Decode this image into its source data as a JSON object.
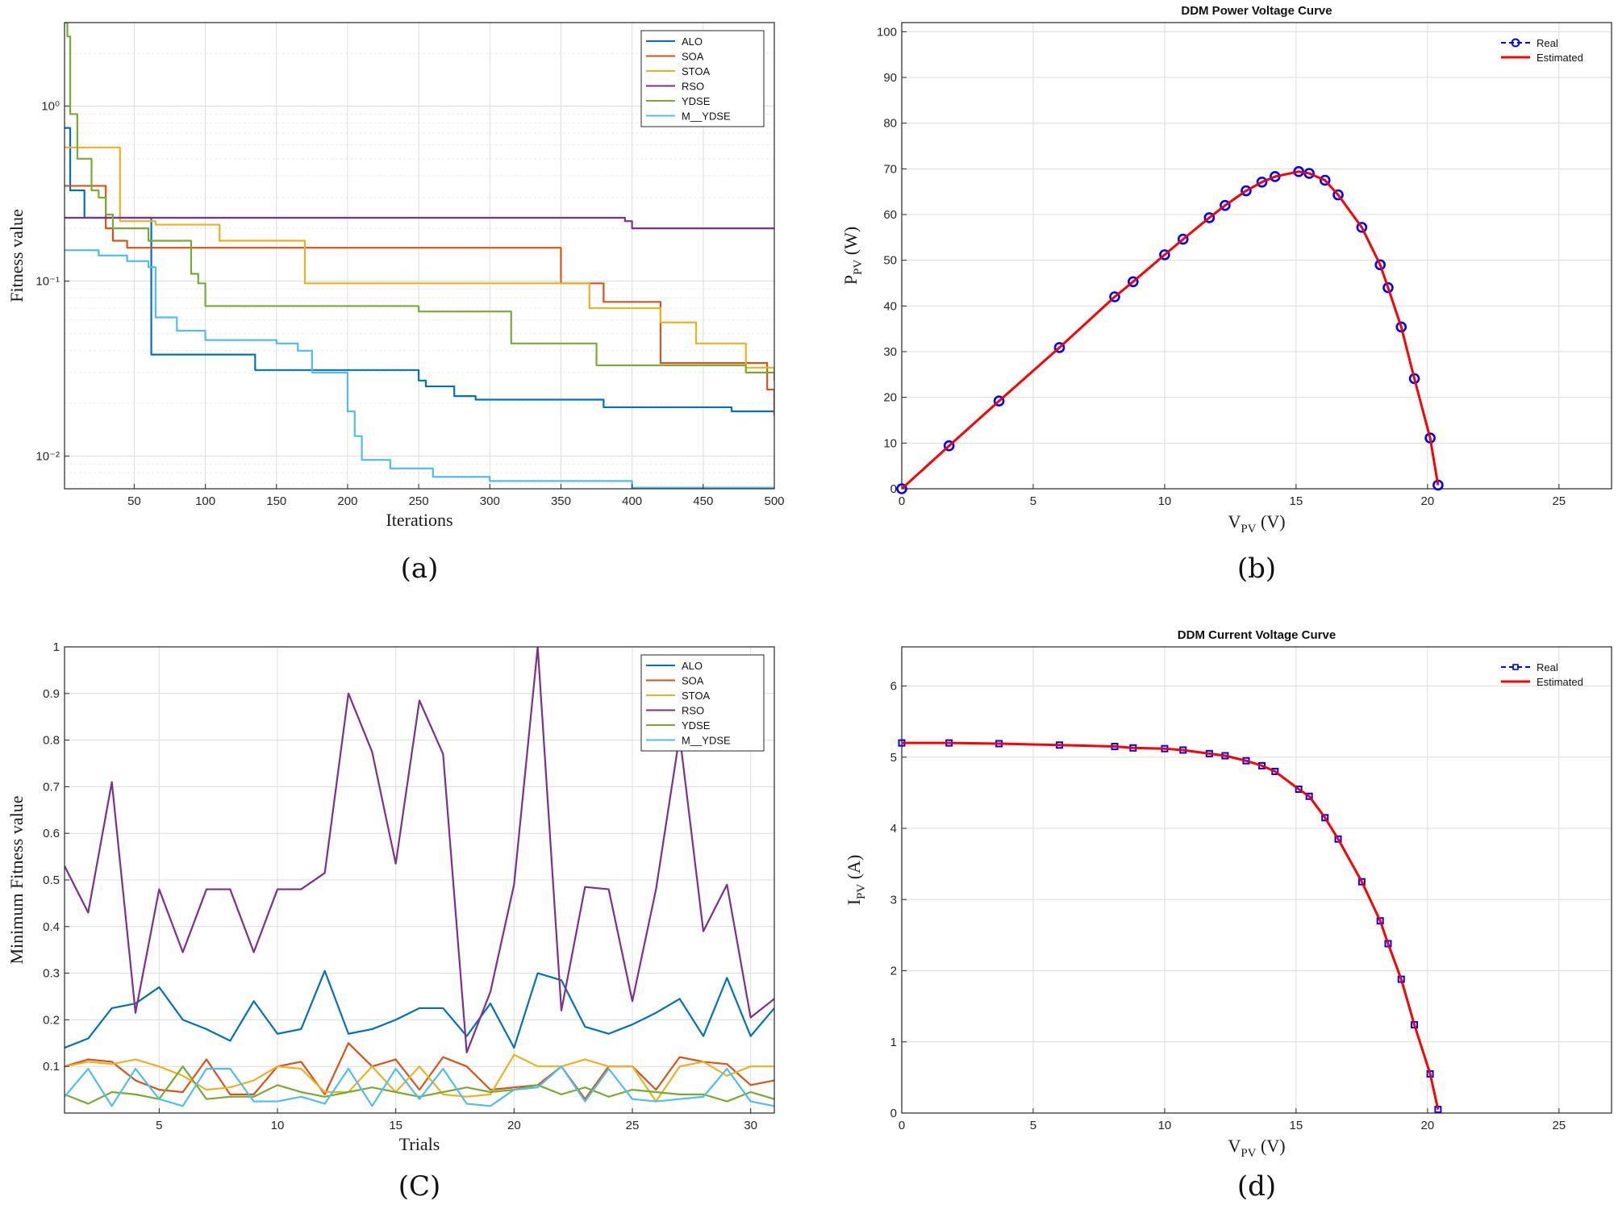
{
  "chart_data": [
    {
      "type": "line",
      "panel": "a",
      "caption": "(a)",
      "title": "",
      "xlabel": "Iterations",
      "ylabel": "Fitness value",
      "xlim": [
        1,
        500
      ],
      "ylim": [
        0.0065,
        3
      ],
      "yscale": "log",
      "xticks": [
        50,
        100,
        150,
        200,
        250,
        300,
        350,
        400,
        450,
        500
      ],
      "yticks": [
        0.01,
        0.1,
        1
      ],
      "ytick_labels": [
        "10⁻²",
        "10⁻¹",
        "10⁰"
      ],
      "grid": true,
      "legend_position": "top-right",
      "step": true,
      "series": [
        {
          "name": "ALO",
          "color": "#0072BD",
          "x": [
            1,
            5,
            8,
            15,
            20,
            62,
            135,
            250,
            255,
            275,
            290,
            310,
            380,
            470,
            500
          ],
          "values": [
            0.75,
            0.33,
            0.33,
            0.23,
            0.23,
            0.038,
            0.031,
            0.027,
            0.025,
            0.022,
            0.021,
            0.021,
            0.019,
            0.018,
            0.018
          ]
        },
        {
          "name": "SOA",
          "color": "#D95319",
          "x": [
            1,
            10,
            20,
            30,
            35,
            45,
            100,
            170,
            350,
            380,
            420,
            470,
            495,
            500
          ],
          "values": [
            0.35,
            0.35,
            0.35,
            0.2,
            0.17,
            0.155,
            0.155,
            0.155,
            0.097,
            0.076,
            0.034,
            0.034,
            0.024,
            0.017
          ]
        },
        {
          "name": "STOA",
          "color": "#EDB120",
          "x": [
            1,
            25,
            38,
            40,
            60,
            65,
            110,
            170,
            350,
            370,
            395,
            420,
            445,
            480,
            500
          ],
          "values": [
            0.58,
            0.58,
            0.58,
            0.22,
            0.22,
            0.21,
            0.17,
            0.097,
            0.097,
            0.07,
            0.07,
            0.058,
            0.044,
            0.032,
            0.03
          ]
        },
        {
          "name": "RSO",
          "color": "#7E2F8E",
          "x": [
            1,
            30,
            380,
            395,
            400,
            500
          ],
          "values": [
            0.23,
            0.23,
            0.23,
            0.22,
            0.2,
            0.2
          ]
        },
        {
          "name": "YDSE",
          "color": "#77AC30",
          "x": [
            1,
            3,
            5,
            10,
            20,
            25,
            30,
            35,
            60,
            90,
            95,
            100,
            150,
            250,
            315,
            375,
            480,
            500
          ],
          "values": [
            3,
            2.5,
            0.9,
            0.5,
            0.33,
            0.3,
            0.24,
            0.2,
            0.17,
            0.11,
            0.097,
            0.072,
            0.072,
            0.067,
            0.044,
            0.033,
            0.03,
            0.027
          ]
        },
        {
          "name": "M__YDSE",
          "color": "#4DBEEE",
          "x": [
            1,
            10,
            25,
            45,
            60,
            65,
            80,
            100,
            150,
            165,
            175,
            200,
            205,
            210,
            230,
            260,
            300,
            400,
            500
          ],
          "values": [
            0.15,
            0.15,
            0.14,
            0.13,
            0.12,
            0.062,
            0.052,
            0.046,
            0.044,
            0.04,
            0.03,
            0.018,
            0.013,
            0.0095,
            0.0085,
            0.0076,
            0.0072,
            0.0066,
            0.0064
          ]
        }
      ]
    },
    {
      "type": "line",
      "panel": "b",
      "caption": "(b)",
      "title": "DDM Power Voltage Curve",
      "xlabel": "V_PV (V)",
      "xlabel_main": "V",
      "xlabel_sub": "PV",
      "xlabel_unit": " (V)",
      "ylabel": "P_PV (W)",
      "ylabel_main": "P",
      "ylabel_sub": "PV",
      "ylabel_unit": " (W)",
      "xlim": [
        0,
        27
      ],
      "ylim": [
        0,
        102
      ],
      "xticks": [
        0,
        5,
        10,
        15,
        20,
        25
      ],
      "yticks": [
        0,
        10,
        20,
        30,
        40,
        50,
        60,
        70,
        80,
        90,
        100
      ],
      "grid": true,
      "legend_position": "top-right",
      "series": [
        {
          "name": "Real",
          "color": "#0000FF",
          "marker": "circle",
          "x": [
            0,
            1.8,
            3.7,
            6,
            8.1,
            8.8,
            10,
            10.7,
            11.7,
            12.3,
            13.1,
            13.7,
            14.2,
            15.1,
            15.5,
            16.1,
            16.6,
            17.5,
            18.2,
            18.5,
            19,
            19.5,
            20.1,
            20.4
          ],
          "values": [
            0,
            9.4,
            19.2,
            30.9,
            42,
            45.3,
            51.2,
            54.6,
            59.3,
            62,
            65.2,
            67.1,
            68.3,
            69.4,
            69,
            67.5,
            64.3,
            57.2,
            49,
            44,
            35.4,
            24.1,
            11.1,
            0.8
          ]
        },
        {
          "name": "Estimated",
          "color": "#FF0000",
          "x": [
            0,
            1.8,
            3.7,
            6,
            8.1,
            8.8,
            10,
            10.7,
            11.7,
            12.3,
            13.1,
            13.7,
            14.2,
            15.1,
            15.5,
            16.1,
            16.6,
            17.5,
            18.2,
            18.5,
            19,
            19.5,
            20.1,
            20.4
          ],
          "values": [
            0,
            9.4,
            19.2,
            30.9,
            42,
            45.3,
            51.2,
            54.6,
            59.3,
            62,
            65.2,
            67.1,
            68.3,
            69.4,
            69,
            67.5,
            64.3,
            57.2,
            49,
            44,
            35.4,
            24.1,
            11.1,
            0.8
          ]
        }
      ]
    },
    {
      "type": "line",
      "panel": "c",
      "caption": "(C)",
      "title": "",
      "xlabel": "Trials",
      "ylabel": "Minimum Fitness value",
      "xlim": [
        1,
        31
      ],
      "ylim": [
        0,
        1
      ],
      "xticks": [
        5,
        10,
        15,
        20,
        25,
        30
      ],
      "yticks": [
        0.1,
        0.2,
        0.3,
        0.4,
        0.5,
        0.6,
        0.7,
        0.8,
        0.9,
        1
      ],
      "grid": true,
      "legend_position": "top-right",
      "series": [
        {
          "name": "ALO",
          "color": "#0072BD",
          "x": [
            1,
            2,
            3,
            4,
            5,
            6,
            7,
            8,
            9,
            10,
            11,
            12,
            13,
            14,
            15,
            16,
            17,
            18,
            19,
            20,
            21,
            22,
            23,
            24,
            25,
            26,
            27,
            28,
            29,
            30,
            31
          ],
          "values": [
            0.14,
            0.16,
            0.225,
            0.235,
            0.27,
            0.2,
            0.18,
            0.155,
            0.24,
            0.17,
            0.18,
            0.305,
            0.17,
            0.18,
            0.2,
            0.225,
            0.225,
            0.165,
            0.235,
            0.14,
            0.3,
            0.285,
            0.185,
            0.17,
            0.19,
            0.215,
            0.245,
            0.165,
            0.29,
            0.165,
            0.225
          ]
        },
        {
          "name": "SOA",
          "color": "#D95319",
          "x": [
            1,
            2,
            3,
            4,
            5,
            6,
            7,
            8,
            9,
            10,
            11,
            12,
            13,
            14,
            15,
            16,
            17,
            18,
            19,
            20,
            21,
            22,
            23,
            24,
            25,
            26,
            27,
            28,
            29,
            30,
            31
          ],
          "values": [
            0.1,
            0.115,
            0.11,
            0.07,
            0.05,
            0.045,
            0.115,
            0.04,
            0.04,
            0.1,
            0.11,
            0.04,
            0.15,
            0.1,
            0.115,
            0.05,
            0.12,
            0.1,
            0.05,
            0.055,
            0.06,
            0.1,
            0.03,
            0.1,
            0.1,
            0.05,
            0.12,
            0.11,
            0.105,
            0.06,
            0.07
          ]
        },
        {
          "name": "STOA",
          "color": "#EDB120",
          "x": [
            1,
            2,
            3,
            4,
            5,
            6,
            7,
            8,
            9,
            10,
            11,
            12,
            13,
            14,
            15,
            16,
            17,
            18,
            19,
            20,
            21,
            22,
            23,
            24,
            25,
            26,
            27,
            28,
            29,
            30,
            31
          ],
          "values": [
            0.1,
            0.11,
            0.105,
            0.115,
            0.1,
            0.08,
            0.05,
            0.055,
            0.07,
            0.1,
            0.095,
            0.045,
            0.045,
            0.1,
            0.045,
            0.1,
            0.04,
            0.035,
            0.04,
            0.125,
            0.1,
            0.1,
            0.115,
            0.1,
            0.1,
            0.025,
            0.1,
            0.11,
            0.08,
            0.1,
            0.1
          ]
        },
        {
          "name": "RSO",
          "color": "#7E2F8E",
          "x": [
            1,
            2,
            3,
            4,
            5,
            6,
            7,
            8,
            9,
            10,
            11,
            12,
            13,
            14,
            15,
            16,
            17,
            18,
            19,
            20,
            21,
            22,
            23,
            24,
            25,
            26,
            27,
            28,
            29,
            30,
            31
          ],
          "values": [
            0.53,
            0.43,
            0.71,
            0.215,
            0.48,
            0.345,
            0.48,
            0.48,
            0.345,
            0.48,
            0.48,
            0.515,
            0.9,
            0.775,
            0.535,
            0.885,
            0.77,
            0.13,
            0.26,
            0.49,
            1.0,
            0.22,
            0.485,
            0.48,
            0.24,
            0.48,
            0.81,
            0.39,
            0.49,
            0.205,
            0.245
          ]
        },
        {
          "name": "YDSE",
          "color": "#77AC30",
          "x": [
            1,
            2,
            3,
            4,
            5,
            6,
            7,
            8,
            9,
            10,
            11,
            12,
            13,
            14,
            15,
            16,
            17,
            18,
            19,
            20,
            21,
            22,
            23,
            24,
            25,
            26,
            27,
            28,
            29,
            30,
            31
          ],
          "values": [
            0.04,
            0.02,
            0.045,
            0.04,
            0.03,
            0.1,
            0.03,
            0.035,
            0.035,
            0.06,
            0.045,
            0.035,
            0.045,
            0.055,
            0.045,
            0.035,
            0.045,
            0.055,
            0.045,
            0.05,
            0.06,
            0.04,
            0.055,
            0.035,
            0.05,
            0.045,
            0.04,
            0.04,
            0.025,
            0.045,
            0.03
          ]
        },
        {
          "name": "M__YDSE",
          "color": "#4DBEEE",
          "x": [
            1,
            2,
            3,
            4,
            5,
            6,
            7,
            8,
            9,
            10,
            11,
            12,
            13,
            14,
            15,
            16,
            17,
            18,
            19,
            20,
            21,
            22,
            23,
            24,
            25,
            26,
            27,
            28,
            29,
            30,
            31
          ],
          "values": [
            0.035,
            0.095,
            0.015,
            0.095,
            0.03,
            0.015,
            0.095,
            0.095,
            0.025,
            0.025,
            0.035,
            0.02,
            0.095,
            0.015,
            0.095,
            0.03,
            0.095,
            0.02,
            0.015,
            0.05,
            0.055,
            0.1,
            0.025,
            0.095,
            0.03,
            0.025,
            0.03,
            0.035,
            0.095,
            0.025,
            0.015
          ]
        }
      ]
    },
    {
      "type": "line",
      "panel": "d",
      "caption": "(d)",
      "title": "DDM Current Voltage Curve",
      "xlabel": "V_PV (V)",
      "xlabel_main": "V",
      "xlabel_sub": "PV",
      "xlabel_unit": " (V)",
      "ylabel": "I_PV (A)",
      "ylabel_main": "I",
      "ylabel_sub": "PV",
      "ylabel_unit": " (A)",
      "xlim": [
        0,
        27
      ],
      "ylim": [
        0,
        6.55
      ],
      "xticks": [
        0,
        5,
        10,
        15,
        20,
        25
      ],
      "yticks": [
        0,
        1,
        2,
        3,
        4,
        5,
        6
      ],
      "grid": true,
      "legend_position": "top-right",
      "series": [
        {
          "name": "Real",
          "color": "#0000FF",
          "marker": "square",
          "x": [
            0,
            1.8,
            3.7,
            6,
            8.1,
            8.8,
            10,
            10.7,
            11.7,
            12.3,
            13.1,
            13.7,
            14.2,
            15.1,
            15.5,
            16.1,
            16.6,
            17.5,
            18.2,
            18.5,
            19,
            19.5,
            20.1,
            20.4
          ],
          "values": [
            5.2,
            5.2,
            5.19,
            5.17,
            5.15,
            5.13,
            5.12,
            5.1,
            5.05,
            5.02,
            4.95,
            4.88,
            4.8,
            4.55,
            4.45,
            4.15,
            3.85,
            3.25,
            2.7,
            2.38,
            1.88,
            1.24,
            0.55,
            0.05
          ]
        },
        {
          "name": "Estimated",
          "color": "#FF0000",
          "x": [
            0,
            1.8,
            3.7,
            6,
            8.1,
            8.8,
            10,
            10.7,
            11.7,
            12.3,
            13.1,
            13.7,
            14.2,
            15.1,
            15.5,
            16.1,
            16.6,
            17.5,
            18.2,
            18.5,
            19,
            19.5,
            20.1,
            20.4
          ],
          "values": [
            5.2,
            5.2,
            5.19,
            5.17,
            5.15,
            5.13,
            5.12,
            5.1,
            5.05,
            5.02,
            4.95,
            4.88,
            4.8,
            4.55,
            4.45,
            4.15,
            3.85,
            3.25,
            2.7,
            2.38,
            1.88,
            1.24,
            0.55,
            0.05
          ]
        }
      ]
    }
  ]
}
